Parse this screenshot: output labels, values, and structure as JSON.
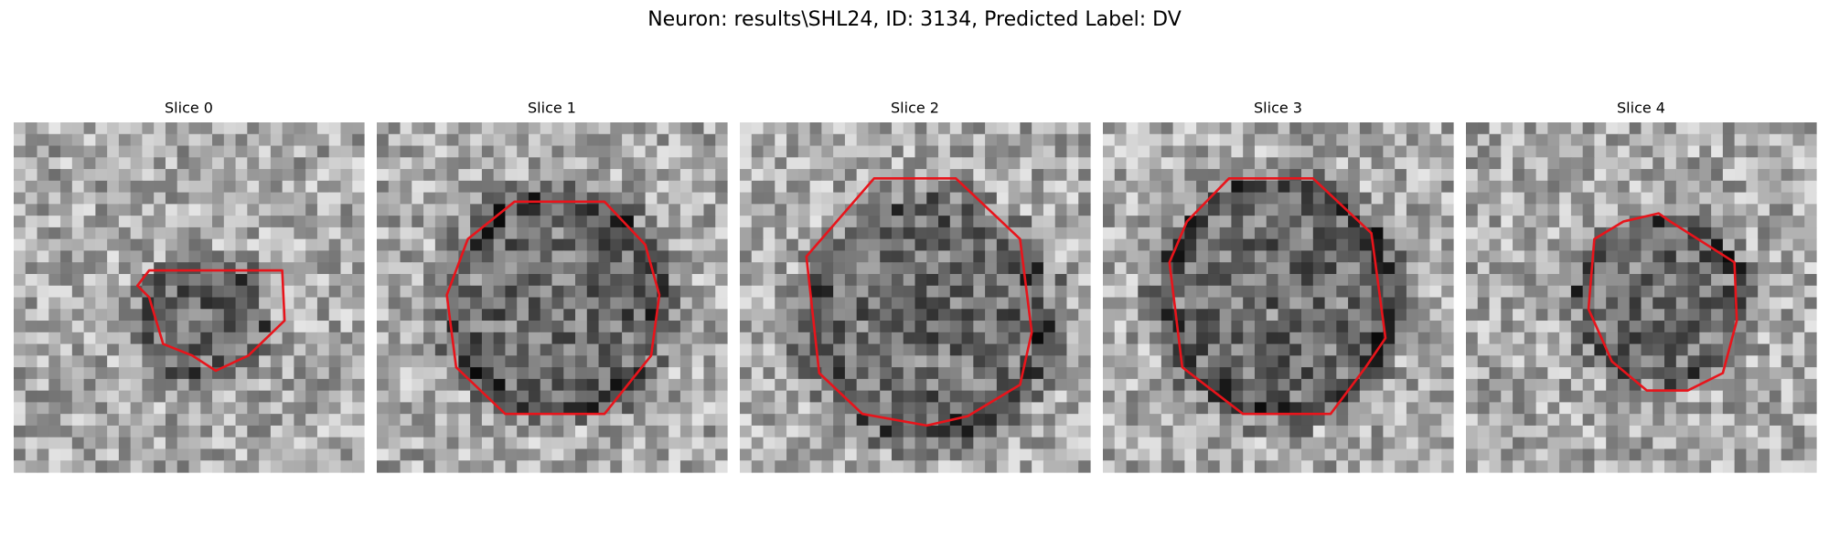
{
  "title": "Neuron: results\\SHL24, ID: 3134, Predicted Label: DV",
  "panels": [
    {
      "title": "Slice 0"
    },
    {
      "title": "Slice 1"
    },
    {
      "title": "Slice 2"
    },
    {
      "title": "Slice 3"
    },
    {
      "title": "Slice 4"
    }
  ]
}
